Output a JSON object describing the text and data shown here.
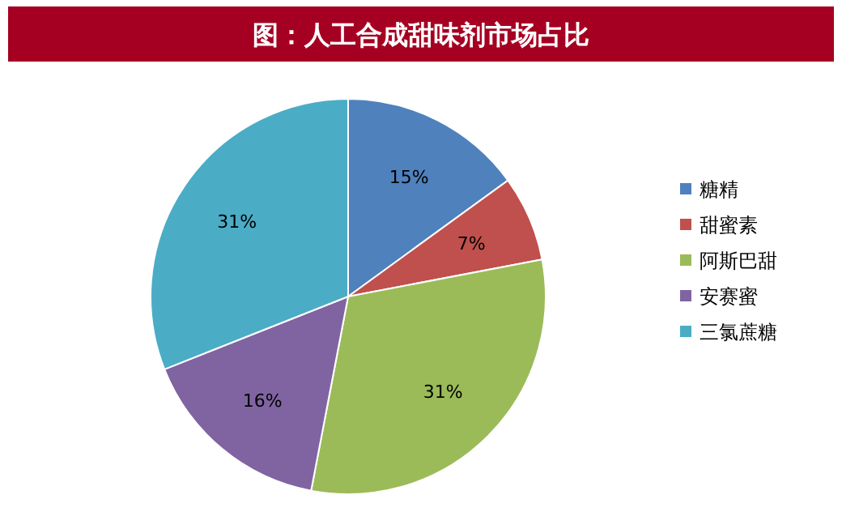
{
  "chart_data": {
    "type": "pie",
    "title": "图：人工合成甜味剂市场占比",
    "categories": [
      "糖精",
      "甜蜜素",
      "阿斯巴甜",
      "安赛蜜",
      "三氯蔗糖"
    ],
    "values": [
      15,
      7,
      31,
      16,
      31
    ],
    "colors": [
      "#4f81bd",
      "#c0504d",
      "#9bbb59",
      "#8064a2",
      "#4bacc6"
    ],
    "value_labels": [
      "15%",
      "7%",
      "31%",
      "16%",
      "31%"
    ],
    "legend": "right"
  }
}
